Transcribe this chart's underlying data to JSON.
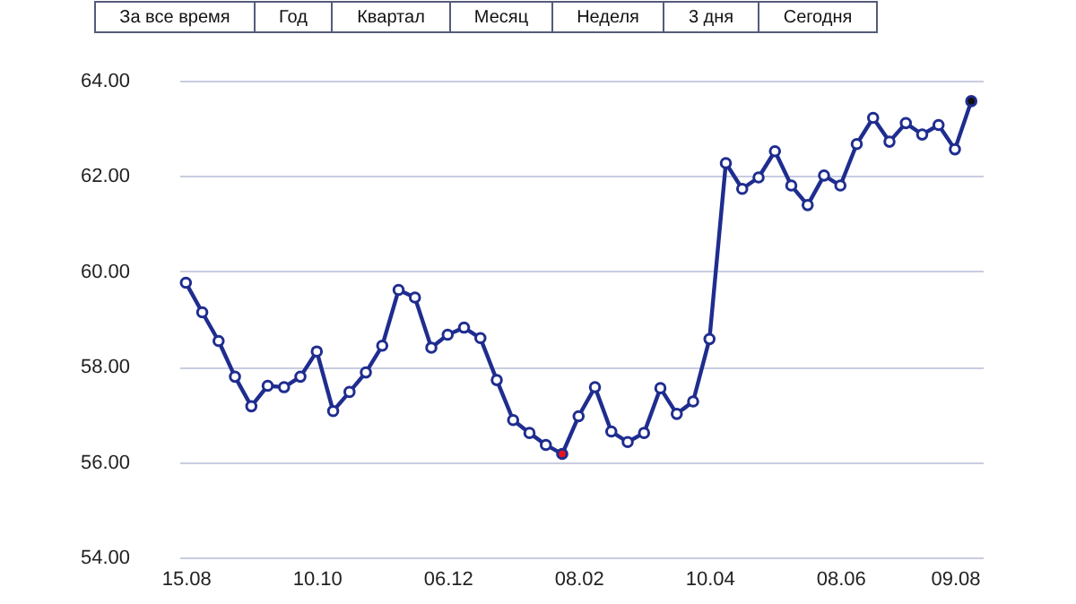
{
  "chart_data": {
    "type": "line",
    "annotations": [
      "За все время",
      "Год",
      "Квартал",
      "Месяц",
      "Неделя",
      "3 дня",
      "Сегодня"
    ],
    "categories": [
      "15.08",
      null,
      null,
      null,
      null,
      null,
      null,
      null,
      "10.10",
      null,
      null,
      null,
      null,
      null,
      null,
      null,
      "06.12",
      null,
      null,
      null,
      null,
      null,
      null,
      null,
      "08.02",
      null,
      null,
      null,
      null,
      null,
      null,
      null,
      "10.04",
      null,
      null,
      null,
      null,
      null,
      null,
      null,
      "08.06",
      null,
      null,
      null,
      null,
      null,
      null,
      "09.08",
      null
    ],
    "series": [
      {
        "color": "#1f2d8f",
        "colors": [
          "#ffffff",
          "#ffffff",
          "#ffffff",
          "#ffffff",
          "#ffffff",
          "#ffffff",
          "#ffffff",
          "#ffffff",
          "#ffffff",
          "#ffffff",
          "#ffffff",
          "#ffffff",
          "#ffffff",
          "#ffffff",
          "#ffffff",
          "#ffffff",
          "#ffffff",
          "#ffffff",
          "#ffffff",
          "#ffffff",
          "#ffffff",
          "#ffffff",
          "#ffffff",
          "#e8141c",
          "#ffffff",
          "#ffffff",
          "#ffffff",
          "#ffffff",
          "#ffffff",
          "#ffffff",
          "#ffffff",
          "#ffffff",
          "#ffffff",
          "#ffffff",
          "#ffffff",
          "#ffffff",
          "#ffffff",
          "#ffffff",
          "#ffffff",
          "#ffffff",
          "#ffffff",
          "#ffffff",
          "#ffffff",
          "#ffffff",
          "#ffffff",
          "#ffffff",
          "#ffffff",
          "#ffffff",
          "#111111"
        ],
        "values": [
          59.76,
          59.14,
          58.54,
          57.79,
          57.17,
          57.6,
          57.57,
          57.79,
          58.32,
          57.07,
          57.47,
          57.88,
          58.44,
          59.61,
          59.45,
          58.4,
          58.67,
          58.82,
          58.6,
          57.72,
          56.88,
          56.61,
          56.36,
          56.17,
          56.96,
          57.57,
          56.64,
          56.42,
          56.61,
          57.55,
          57.01,
          57.27,
          58.58,
          62.27,
          61.73,
          61.97,
          62.52,
          61.8,
          61.39,
          62.01,
          61.8,
          62.67,
          63.22,
          62.72,
          63.11,
          62.87,
          63.07,
          62.56,
          63.57
        ]
      }
    ],
    "ylim": [
      54,
      64
    ],
    "yticks": [
      {
        "value": 54,
        "label": "54.00"
      },
      {
        "value": 56,
        "label": "56.00"
      },
      {
        "value": 58,
        "label": "58.00"
      },
      {
        "value": 60,
        "label": "60.00"
      },
      {
        "value": 62,
        "label": "62.00"
      },
      {
        "value": 64,
        "label": "64.00"
      }
    ],
    "grid": "y",
    "marker": "circle",
    "line_style": "solid",
    "legend": false
  }
}
